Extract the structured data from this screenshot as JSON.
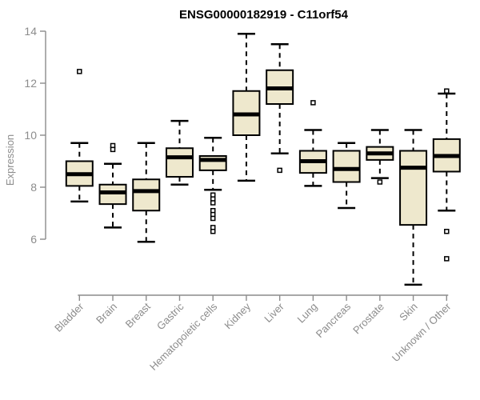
{
  "chart_data": {
    "type": "boxplot",
    "title": "ENSG00000182919 - C11orf54",
    "ylabel": "Expression",
    "y_axis": {
      "ticks": [
        6,
        8,
        10,
        12,
        14
      ],
      "range_top": 14,
      "range_bottom": 6,
      "grid": false
    },
    "categories": [
      "Bladder",
      "Brain",
      "Breast",
      "Gastric",
      "Hematopoietic cells",
      "Kidney",
      "Liver",
      "Lung",
      "Pancreas",
      "Prostate",
      "Skin",
      "Unknown / Other"
    ],
    "boxes": [
      {
        "category": "Bladder",
        "whisker_low": 7.45,
        "q1": 8.05,
        "median": 8.5,
        "q3": 9.0,
        "whisker_high": 9.7,
        "outliers": [
          12.45
        ]
      },
      {
        "category": "Brain",
        "whisker_low": 6.45,
        "q1": 7.35,
        "median": 7.8,
        "q3": 8.1,
        "whisker_high": 8.9,
        "outliers": [
          9.6,
          9.45
        ]
      },
      {
        "category": "Breast",
        "whisker_low": 5.9,
        "q1": 7.1,
        "median": 7.85,
        "q3": 8.3,
        "whisker_high": 9.7,
        "outliers": []
      },
      {
        "category": "Gastric",
        "whisker_low": 8.1,
        "q1": 8.4,
        "median": 9.15,
        "q3": 9.5,
        "whisker_high": 10.55,
        "outliers": []
      },
      {
        "category": "Hematopoietic cells",
        "whisker_low": 7.9,
        "q1": 8.65,
        "median": 9.05,
        "q3": 9.2,
        "whisker_high": 9.9,
        "outliers": [
          7.7,
          7.55,
          7.4,
          7.1,
          6.95,
          6.8,
          6.45,
          6.3
        ]
      },
      {
        "category": "Kidney",
        "whisker_low": 8.25,
        "q1": 10.0,
        "median": 10.8,
        "q3": 11.7,
        "whisker_high": 13.9,
        "outliers": []
      },
      {
        "category": "Liver",
        "whisker_low": 9.3,
        "q1": 11.2,
        "median": 11.8,
        "q3": 12.5,
        "whisker_high": 13.5,
        "outliers": [
          8.65
        ]
      },
      {
        "category": "Lung",
        "whisker_low": 8.05,
        "q1": 8.55,
        "median": 9.0,
        "q3": 9.4,
        "whisker_high": 10.2,
        "outliers": [
          11.25
        ]
      },
      {
        "category": "Pancreas",
        "whisker_low": 7.2,
        "q1": 8.2,
        "median": 8.7,
        "q3": 9.4,
        "whisker_high": 9.7,
        "outliers": []
      },
      {
        "category": "Prostate",
        "whisker_low": 8.35,
        "q1": 9.05,
        "median": 9.3,
        "q3": 9.55,
        "whisker_high": 10.2,
        "outliers": [
          8.2
        ]
      },
      {
        "category": "Skin",
        "whisker_low": 4.25,
        "q1": 6.55,
        "median": 8.75,
        "q3": 9.4,
        "whisker_high": 10.2,
        "outliers": []
      },
      {
        "category": "Unknown / Other",
        "whisker_low": 7.1,
        "q1": 8.6,
        "median": 9.2,
        "q3": 9.85,
        "whisker_high": 11.6,
        "outliers": [
          11.7,
          6.3,
          5.25
        ]
      }
    ],
    "colors": {
      "box_fill": "#EEE8CD",
      "box_border": "#000000",
      "median": "#000000",
      "whisker": "#000000",
      "axis_line": "#8c8c8c",
      "tick_text": "#8c8c8c",
      "title_text": "#000000",
      "background": "#ffffff"
    },
    "legend": null
  }
}
